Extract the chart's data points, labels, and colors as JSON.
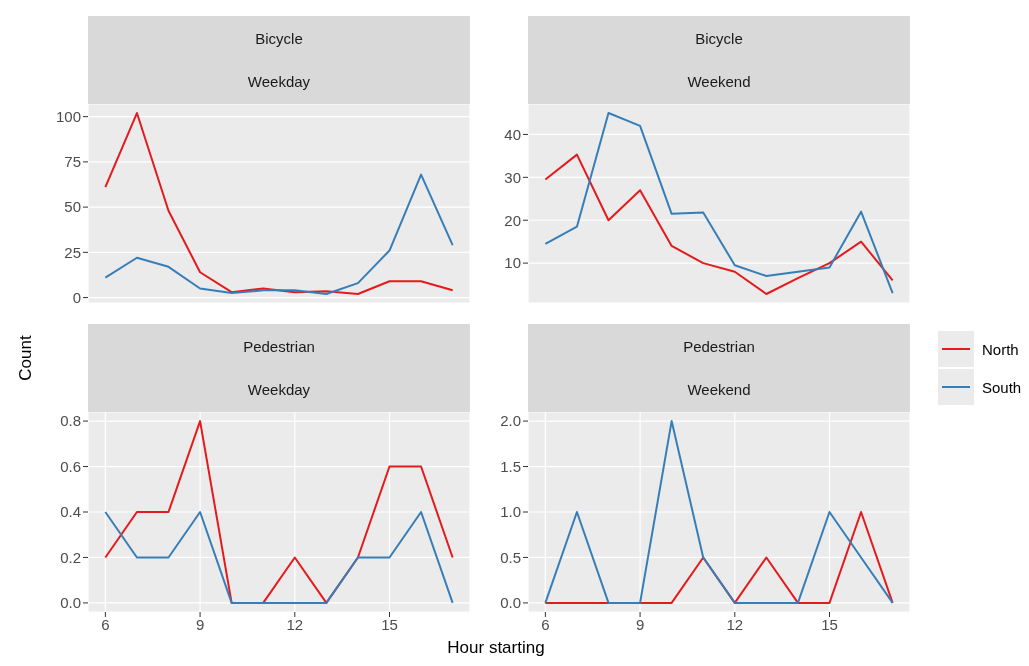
{
  "chart_data": [
    {
      "type": "line",
      "title": "Bicycle",
      "subtitle": "Weekday",
      "x": [
        6,
        7,
        8,
        9,
        10,
        11,
        12,
        13,
        14,
        15,
        16,
        17
      ],
      "xlim": [
        5.45,
        17.55
      ],
      "xticks": [
        6,
        9,
        12,
        15
      ],
      "ylim": [
        -3,
        107
      ],
      "yticks": [
        0,
        25,
        50,
        75,
        100
      ],
      "grid": true,
      "tick_labels": "y",
      "series": [
        {
          "color": "#e41a1c",
          "values": [
            61,
            102,
            48,
            14,
            3,
            5,
            3,
            3.5,
            2,
            9,
            9,
            4
          ]
        },
        {
          "color": "#377eb8",
          "values": [
            11,
            22,
            17,
            5,
            2.5,
            4,
            4,
            2,
            8,
            26,
            68,
            29
          ]
        }
      ]
    },
    {
      "type": "line",
      "title": "Bicycle",
      "subtitle": "Weekend",
      "x": [
        6,
        7,
        8,
        9,
        10,
        11,
        12,
        13,
        14,
        15,
        16,
        17
      ],
      "xlim": [
        5.45,
        17.55
      ],
      "xticks": [
        6,
        9,
        12,
        15
      ],
      "ylim": [
        0.7,
        47.1
      ],
      "yticks": [
        10,
        20,
        30,
        40
      ],
      "grid": true,
      "tick_labels": "y",
      "series": [
        {
          "color": "#e41a1c",
          "values": [
            29.5,
            35.3,
            20,
            27,
            14,
            10,
            8,
            2.8,
            6.5,
            10,
            15,
            6
          ]
        },
        {
          "color": "#377eb8",
          "values": [
            14.5,
            18.5,
            45,
            42,
            21.5,
            21.8,
            9.5,
            7,
            8,
            9,
            22,
            3
          ]
        }
      ]
    },
    {
      "type": "line",
      "title": "Pedestrian",
      "subtitle": "Weekday",
      "xlabel": "Hour starting",
      "ylabel": "Count",
      "x": [
        6,
        7,
        8,
        9,
        10,
        11,
        12,
        13,
        14,
        15,
        16,
        17
      ],
      "xlim": [
        5.45,
        17.55
      ],
      "xticks": [
        6,
        9,
        12,
        15
      ],
      "ylim": [
        -0.04,
        0.84
      ],
      "yticks": [
        {
          "value": 0,
          "label": "0.0"
        },
        0.2,
        0.4,
        0.6,
        0.8
      ],
      "grid": true,
      "series": [
        {
          "color": "#e41a1c",
          "values": [
            0.2,
            0.4,
            0.4,
            0.8,
            0,
            0,
            0.2,
            0,
            0.2,
            0.6,
            0.6,
            0.2
          ]
        },
        {
          "color": "#377eb8",
          "values": [
            0.4,
            0.2,
            0.2,
            0.4,
            0,
            0,
            0,
            0,
            0.2,
            0.2,
            0.4,
            0
          ]
        }
      ]
    },
    {
      "type": "line",
      "title": "Pedestrian",
      "subtitle": "Weekend",
      "x": [
        6,
        7,
        8,
        9,
        10,
        11,
        12,
        13,
        14,
        15,
        16,
        17
      ],
      "xlim": [
        5.45,
        17.55
      ],
      "xticks": [
        6,
        9,
        12,
        15
      ],
      "ylim": [
        -0.1,
        2.1
      ],
      "yticks": [
        {
          "value": 0,
          "label": "0.0"
        },
        0.5,
        {
          "value": 1,
          "label": "1.0"
        },
        1.5,
        {
          "value": 2,
          "label": "2.0"
        }
      ],
      "grid": true,
      "legend": "right",
      "series": [
        {
          "name": "North",
          "color": "#e41a1c",
          "values": [
            0,
            0,
            0,
            0,
            0,
            0.5,
            0,
            0.5,
            0,
            0,
            1,
            0
          ]
        },
        {
          "name": "South",
          "color": "#377eb8",
          "values": [
            0,
            1,
            0,
            0,
            2,
            0.5,
            0,
            0,
            0,
            1,
            0.5,
            0
          ]
        }
      ]
    }
  ]
}
